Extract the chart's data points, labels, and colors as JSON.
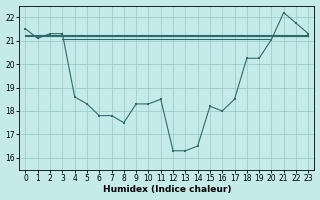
{
  "xlabel": "Humidex (Indice chaleur)",
  "background_color": "#c5eaea",
  "grid_color": "#9ecece",
  "line_color": "#2d6b6b",
  "xlim": [
    -0.5,
    23.5
  ],
  "ylim": [
    15.5,
    22.5
  ],
  "yticks": [
    16,
    17,
    18,
    19,
    20,
    21,
    22
  ],
  "xticks": [
    0,
    1,
    2,
    3,
    4,
    5,
    6,
    7,
    8,
    9,
    10,
    11,
    12,
    13,
    14,
    15,
    16,
    17,
    18,
    19,
    20,
    21,
    22,
    23
  ],
  "flat_lines": [
    {
      "x": [
        0,
        23
      ],
      "y": [
        21.25,
        21.25
      ]
    },
    {
      "x": [
        0,
        23
      ],
      "y": [
        21.22,
        21.22
      ]
    },
    {
      "x": [
        3,
        23
      ],
      "y": [
        21.18,
        21.18
      ]
    },
    {
      "x": [
        3,
        20
      ],
      "y": [
        21.08,
        21.08
      ]
    }
  ],
  "curve": {
    "x": [
      0,
      1,
      2,
      3,
      4,
      5,
      6,
      7,
      8,
      9,
      10,
      11,
      12,
      13,
      14,
      15,
      16,
      17,
      18,
      19,
      20,
      21,
      22,
      23
    ],
    "y": [
      21.5,
      21.1,
      21.3,
      21.3,
      18.6,
      18.3,
      17.8,
      17.8,
      17.5,
      18.3,
      18.3,
      18.5,
      16.3,
      16.3,
      16.5,
      18.2,
      18.0,
      18.5,
      20.25,
      20.25,
      21.05,
      22.2,
      21.75,
      21.3
    ]
  },
  "marker_x": [
    0,
    1,
    2,
    3,
    4,
    5,
    6,
    7,
    8,
    9,
    10,
    11,
    12,
    13,
    14,
    15,
    16,
    17,
    18,
    19,
    20,
    21,
    22,
    23
  ],
  "marker_y": [
    21.5,
    21.1,
    21.3,
    21.3,
    18.6,
    18.3,
    17.8,
    17.8,
    17.5,
    18.3,
    18.3,
    18.5,
    16.3,
    16.3,
    16.5,
    18.2,
    18.0,
    18.5,
    20.25,
    20.25,
    21.05,
    22.2,
    21.75,
    21.3
  ]
}
